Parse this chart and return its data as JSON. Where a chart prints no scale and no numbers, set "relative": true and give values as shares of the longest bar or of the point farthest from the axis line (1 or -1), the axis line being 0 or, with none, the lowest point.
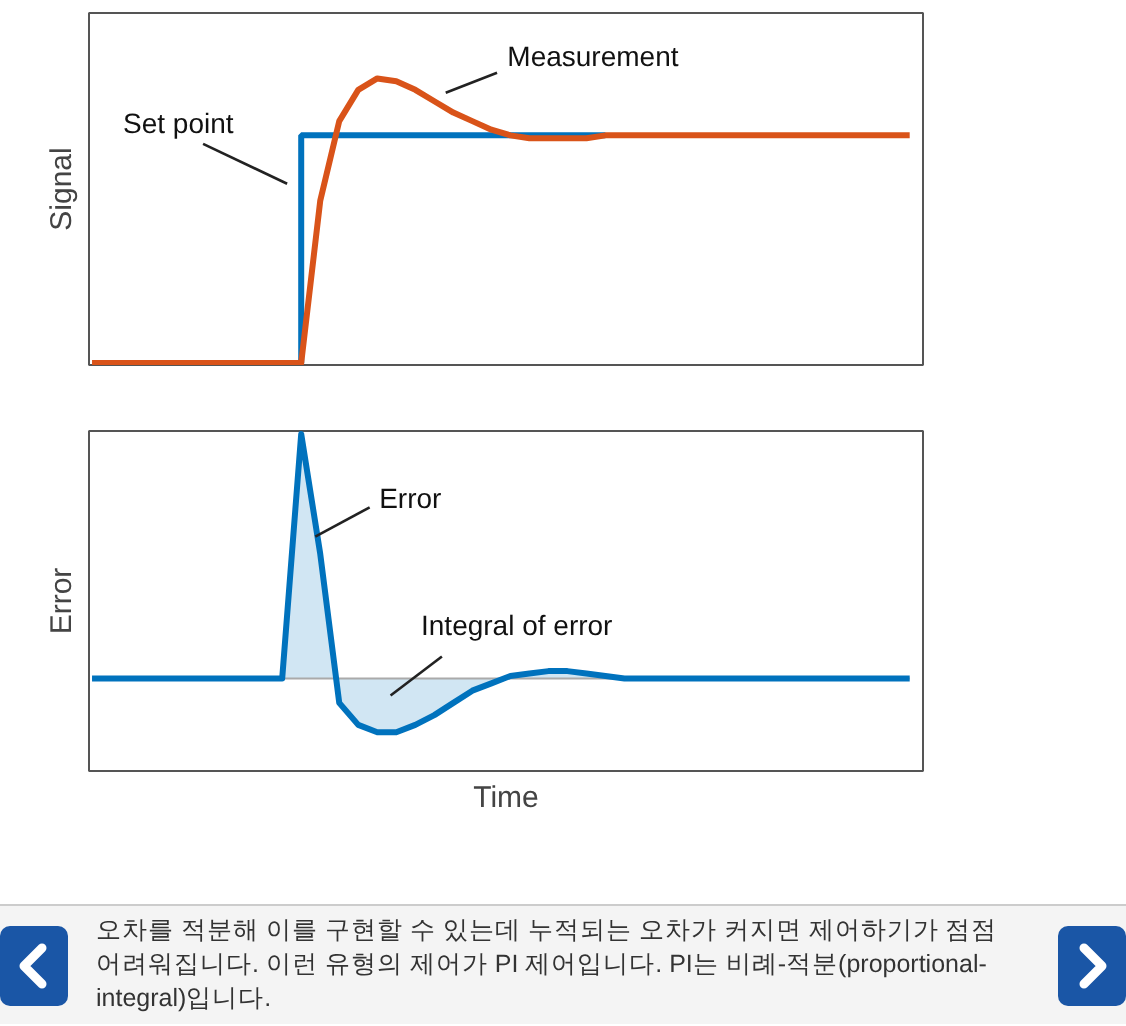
{
  "chart_data": [
    {
      "type": "line",
      "relative": true,
      "ylabel": "Signal",
      "categories": [
        null,
        null,
        null,
        null,
        null,
        null,
        null,
        null,
        null,
        null,
        null,
        null,
        null,
        null,
        null,
        null,
        null,
        null,
        null,
        null,
        null,
        null,
        null,
        null,
        null,
        null,
        null,
        null,
        null,
        null,
        null,
        null,
        null,
        null,
        null,
        null,
        null,
        null,
        null,
        null,
        null,
        null,
        null,
        null
      ],
      "series": [
        {
          "name": "Set point",
          "type": "step",
          "color": "#0072bd",
          "values": [
            null,
            null,
            null,
            null,
            null,
            null,
            null,
            null,
            null,
            null,
            0,
            0.8,
            0.8,
            0.8,
            0.8,
            0.8,
            0.8,
            0.8,
            0.8,
            0.8,
            0.8,
            0.8,
            0.8,
            0.8,
            0.8,
            0.8,
            0.8,
            0.8,
            null,
            null,
            null,
            null,
            null,
            null,
            null,
            null,
            null,
            null,
            null,
            null,
            null,
            null,
            null,
            null
          ]
        },
        {
          "name": "Measurement",
          "color": "#d95319",
          "values": [
            0,
            0,
            0,
            0,
            0,
            0,
            0,
            0,
            0,
            0,
            0,
            0,
            0.57,
            0.85,
            0.96,
            1.0,
            0.99,
            0.96,
            0.92,
            0.88,
            0.85,
            0.82,
            0.8,
            0.79,
            0.79,
            0.79,
            0.79,
            0.8,
            0.8,
            0.8,
            0.8,
            0.8,
            0.8,
            0.8,
            0.8,
            0.8,
            0.8,
            0.8,
            0.8,
            0.8,
            0.8,
            0.8,
            0.8,
            0.8
          ]
        }
      ]
    },
    {
      "type": "area",
      "relative": true,
      "ylabel": "Error",
      "xlabel": "Time",
      "categories": [
        null,
        null,
        null,
        null,
        null,
        null,
        null,
        null,
        null,
        null,
        null,
        null,
        null,
        null,
        null,
        null,
        null,
        null,
        null,
        null,
        null,
        null,
        null,
        null,
        null,
        null,
        null,
        null,
        null,
        null,
        null,
        null,
        null,
        null,
        null,
        null,
        null,
        null,
        null,
        null,
        null,
        null,
        null,
        null
      ],
      "series": [
        {
          "name": "Error",
          "color": "#0072bd",
          "values": [
            0,
            0,
            0,
            0,
            0,
            0,
            0,
            0,
            0,
            0,
            0,
            1.0,
            0.51,
            -0.1,
            -0.19,
            -0.22,
            -0.22,
            -0.19,
            -0.15,
            -0.1,
            -0.05,
            -0.02,
            0.01,
            0.02,
            0.03,
            0.03,
            0.02,
            0.01,
            0,
            0,
            0,
            0,
            0,
            0,
            0,
            0,
            0,
            0,
            0,
            0,
            0,
            0,
            0,
            0
          ]
        }
      ],
      "annotations": [
        "Integral of error",
        "오차를 적분해 이를 구현할 수 있는데 누적되는 오차가 커지면 제어하기가 점점 어려워집니다. 이런 유형의 제어가 PI 제어입니다. PI는 비례-적분(proportional-integral)입니다."
      ]
    }
  ]
}
